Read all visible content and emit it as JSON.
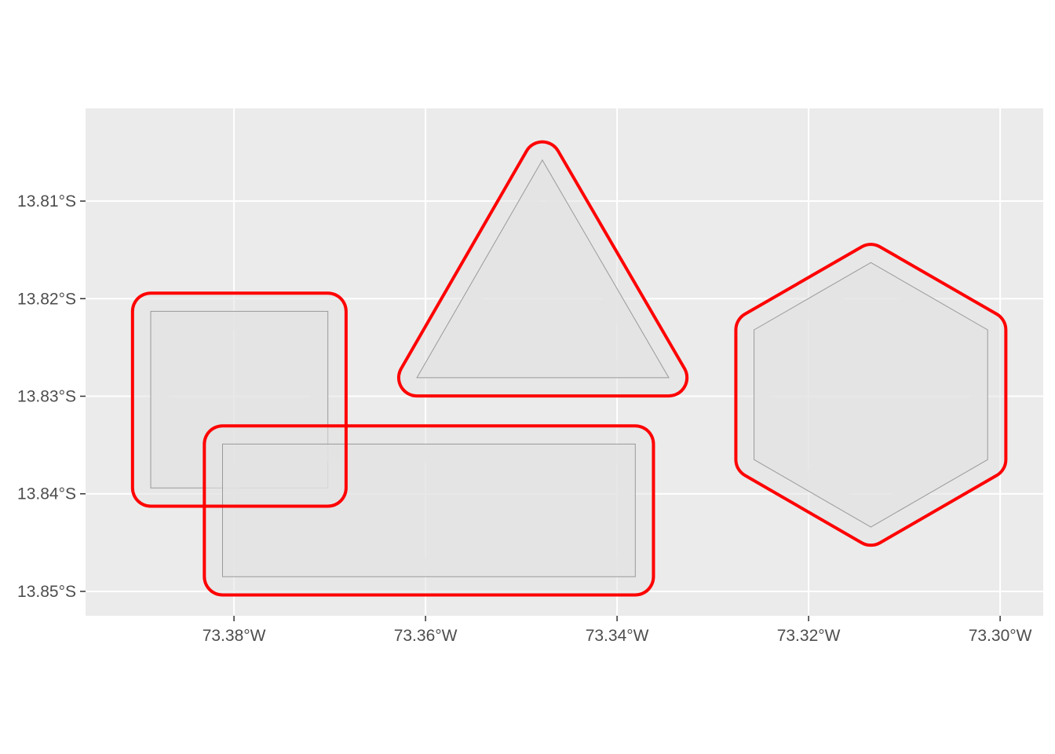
{
  "colors": {
    "panel_background": "#ebebeb",
    "grid_line": "#ffffff",
    "polygon_fill": "#e3e3e3",
    "polygon_outline": "#999999",
    "buffer_outline": "#ff0000",
    "tick_text": "#4d4d4d"
  },
  "map_data": {
    "type": "map",
    "crs": "geographic (degrees)",
    "x_range": [
      -73.3955,
      -73.2955
    ],
    "y_range": [
      -13.8525,
      -13.8005
    ],
    "grid": true,
    "x_axis": {
      "ticks": [
        -73.38,
        -73.36,
        -73.34,
        -73.32,
        -73.3
      ],
      "tick_labels": [
        "73.38°W",
        "73.36°W",
        "73.34°W",
        "73.32°W",
        "73.30°W"
      ]
    },
    "y_axis": {
      "ticks": [
        -13.81,
        -13.82,
        -13.83,
        -13.84,
        -13.85
      ],
      "tick_labels": [
        "13.81°S",
        "13.82°S",
        "13.83°S",
        "13.84°S",
        "13.85°S"
      ]
    },
    "buffer_distance_deg": 0.0019,
    "features": [
      {
        "shape": "square",
        "coordinates": [
          [
            -73.3887,
            -13.8213
          ],
          [
            -73.3702,
            -13.8213
          ],
          [
            -73.3702,
            -13.8394
          ],
          [
            -73.3887,
            -13.8394
          ]
        ]
      },
      {
        "shape": "rectangle",
        "coordinates": [
          [
            -73.3812,
            -13.8349
          ],
          [
            -73.3381,
            -13.8349
          ],
          [
            -73.3381,
            -13.8485
          ],
          [
            -73.3812,
            -13.8485
          ]
        ]
      },
      {
        "shape": "triangle",
        "coordinates": [
          [
            -73.3478,
            -13.8058
          ],
          [
            -73.3609,
            -13.8281
          ],
          [
            -73.3346,
            -13.8281
          ]
        ]
      },
      {
        "shape": "hexagon",
        "coordinates": [
          [
            -73.3135,
            -13.8163
          ],
          [
            -73.3013,
            -13.8232
          ],
          [
            -73.3013,
            -13.8365
          ],
          [
            -73.3135,
            -13.8434
          ],
          [
            -73.3257,
            -13.8365
          ],
          [
            -73.3257,
            -13.8232
          ]
        ]
      }
    ]
  }
}
